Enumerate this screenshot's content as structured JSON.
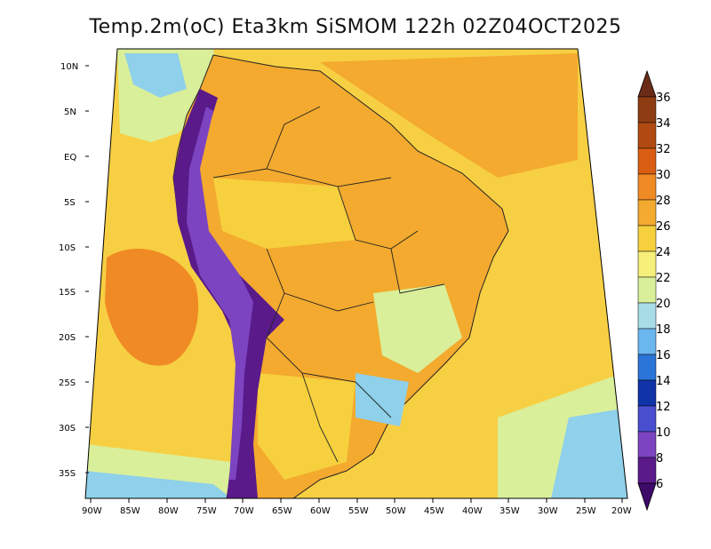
{
  "title": "Temp.2m(oC) Eta3km SiSMOM 122h 02Z04OCT2025",
  "y_axis_labels": [
    "10N",
    "5N",
    "EQ",
    "5S",
    "10S",
    "15S",
    "20S",
    "25S",
    "30S",
    "35S"
  ],
  "x_axis_labels": [
    "90W",
    "85W",
    "80W",
    "75W",
    "70W",
    "65W",
    "60W",
    "55W",
    "50W",
    "45W",
    "40W",
    "35W",
    "30W",
    "25W",
    "20W"
  ],
  "colorbar": {
    "labels": [
      "36",
      "34",
      "32",
      "30",
      "28",
      "26",
      "24",
      "22",
      "20",
      "18",
      "16",
      "14",
      "12",
      "10",
      "8",
      "6"
    ],
    "colors": [
      "#6a2c18",
      "#8e3d12",
      "#b14a12",
      "#d95d12",
      "#f08a24",
      "#f3aa2e",
      "#f7d03e",
      "#f6ef7a",
      "#d9ef9a",
      "#a8dde8",
      "#6ab6ee",
      "#2b74d8",
      "#1133a8",
      "#4a4fd0",
      "#7c44c0",
      "#5a1a8a",
      "#3e0a6a"
    ]
  },
  "map_colors": {
    "ocean_warm": "#f7cf43",
    "ocean_hot": "#f08a24",
    "ocean_cool": "#d9ef9a",
    "ocean_cold": "#8fd0ea",
    "land_hot": "#f3aa2e",
    "andes": "#5a1a8a"
  }
}
